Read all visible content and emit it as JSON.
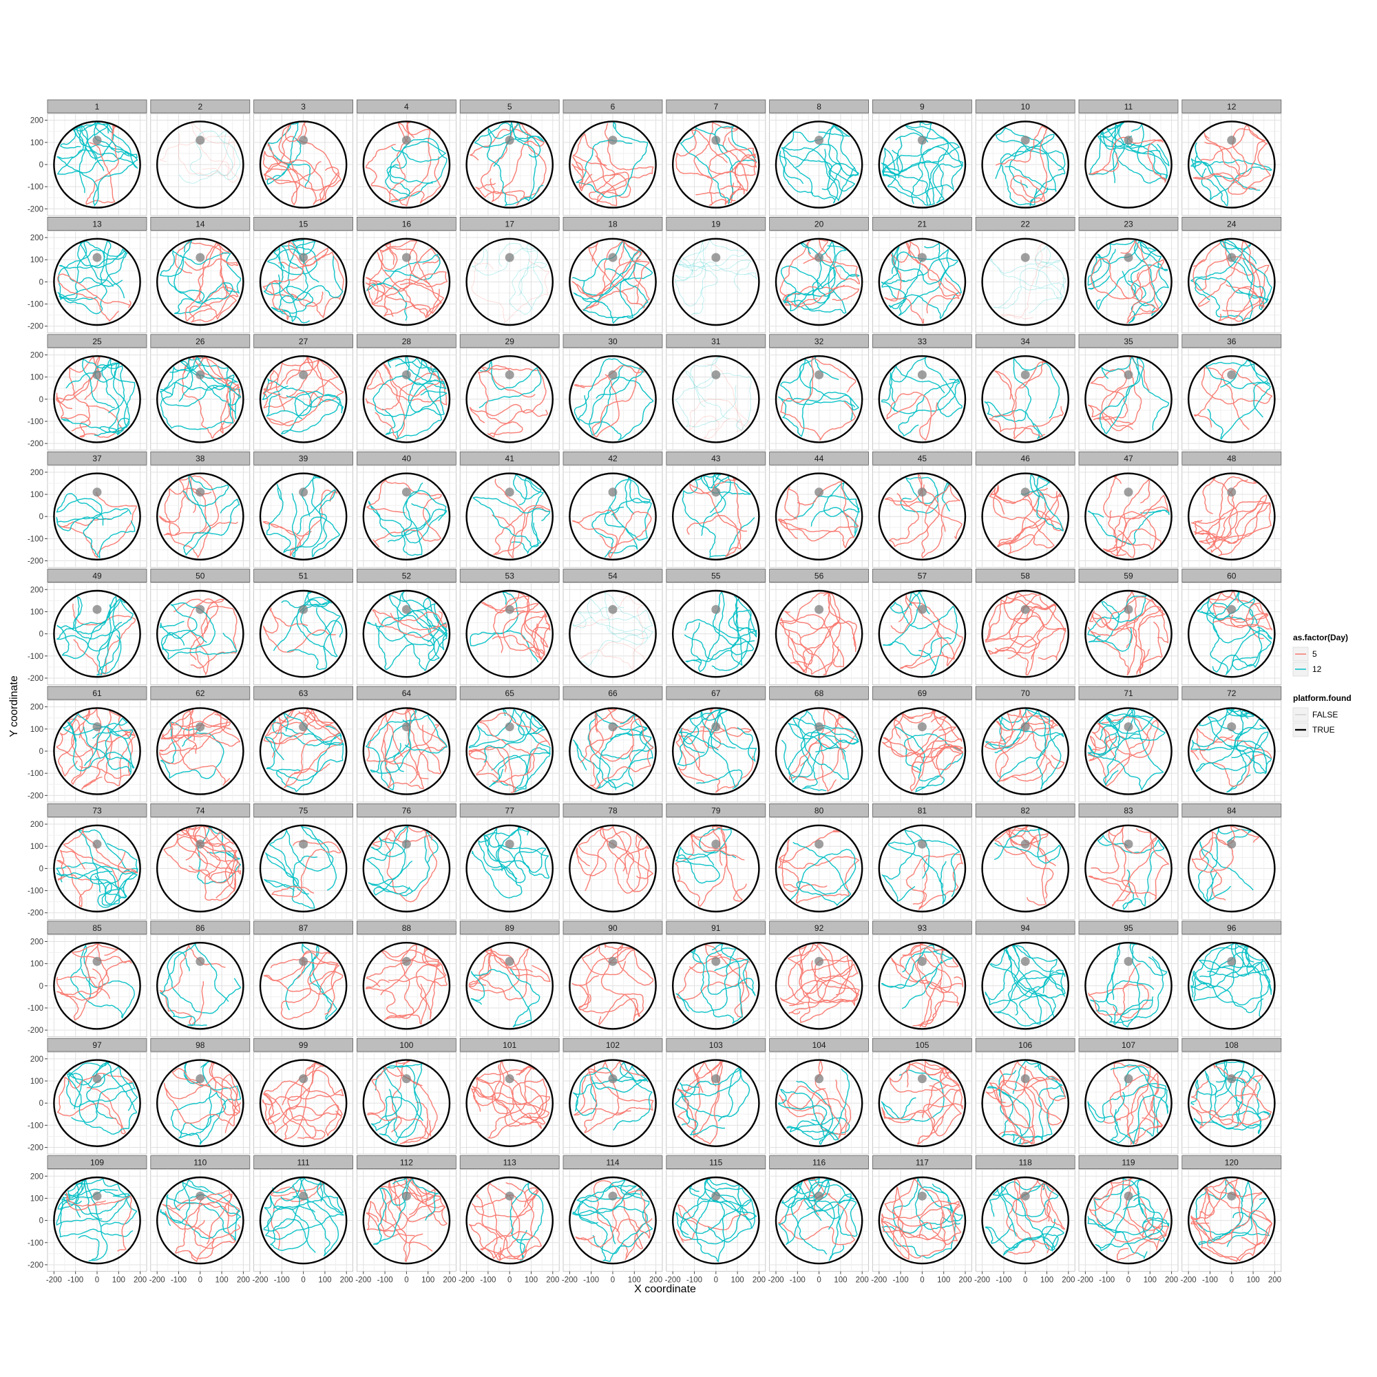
{
  "chart_data": {
    "type": "line",
    "subtype": "faceted path plot (water-maze swim tracks)",
    "panels": [
      "1",
      "2",
      "3",
      "4",
      "5",
      "6",
      "7",
      "8",
      "9",
      "10",
      "11",
      "12",
      "13",
      "14",
      "15",
      "16",
      "17",
      "18",
      "19",
      "20",
      "21",
      "22",
      "23",
      "24",
      "25",
      "26",
      "27",
      "28",
      "29",
      "30",
      "31",
      "32",
      "33",
      "34",
      "35",
      "36",
      "37",
      "38",
      "39",
      "40",
      "41",
      "42",
      "43",
      "44",
      "45",
      "46",
      "47",
      "48",
      "49",
      "50",
      "51",
      "52",
      "53",
      "54",
      "55",
      "56",
      "57",
      "58",
      "59",
      "60",
      "61",
      "62",
      "63",
      "64",
      "65",
      "66",
      "67",
      "68",
      "69",
      "70",
      "71",
      "72",
      "73",
      "74",
      "75",
      "76",
      "77",
      "78",
      "79",
      "80",
      "81",
      "82",
      "83",
      "84",
      "85",
      "86",
      "87",
      "88",
      "89",
      "90",
      "91",
      "92",
      "93",
      "94",
      "95",
      "96",
      "97",
      "98",
      "99",
      "100",
      "101",
      "102",
      "103",
      "104",
      "105",
      "106",
      "107",
      "108",
      "109",
      "110",
      "111",
      "112",
      "113",
      "114",
      "115",
      "116",
      "117",
      "118",
      "119",
      "120"
    ],
    "xlabel": "X coordinate",
    "ylabel": "Y coordinate",
    "xlim": [
      -230,
      230
    ],
    "ylim": [
      -230,
      230
    ],
    "x_ticks": [
      -200,
      -100,
      0,
      100,
      200
    ],
    "y_ticks": [
      -200,
      -100,
      0,
      100,
      200
    ],
    "x_tick_labels": [
      "-200",
      "-100",
      "0",
      "100",
      "200"
    ],
    "y_tick_labels": [
      "-200",
      "-100",
      "0",
      "100",
      "200"
    ],
    "pool": {
      "center": [
        0,
        0
      ],
      "radius": 200
    },
    "platform": {
      "x": 0,
      "y": 110
    },
    "grid": true,
    "legend_placement": "right",
    "legends": [
      {
        "title": "as.factor(Day)",
        "entries": [
          {
            "label": "5",
            "color": "#F8766D"
          },
          {
            "label": "12",
            "color": "#00BFC4"
          }
        ]
      },
      {
        "title": "platform.found",
        "entries": [
          {
            "label": "FALSE",
            "style": "thin-faint"
          },
          {
            "label": "TRUE",
            "style": "thick"
          }
        ]
      }
    ],
    "series": [
      {
        "name": "5",
        "color": "#F8766D"
      },
      {
        "name": "12",
        "color": "#00BFC4"
      }
    ],
    "faint_panels": [
      "2",
      "17",
      "19",
      "22",
      "31",
      "54"
    ]
  }
}
